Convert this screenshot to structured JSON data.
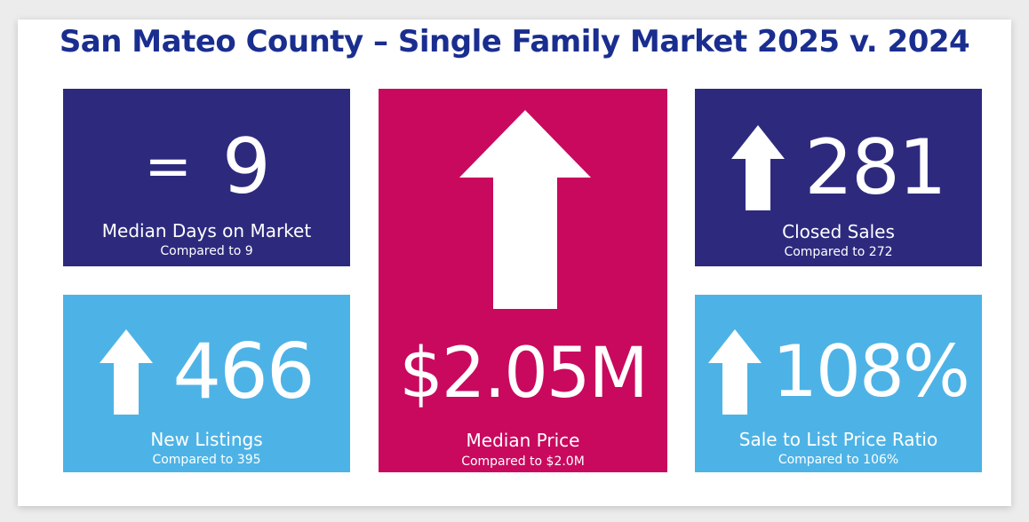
{
  "title": "San Mateo County – Single Family Market 2025 v. 2024",
  "colors": {
    "title": "#1a2e8f",
    "navy": "#2d2a7e",
    "sky": "#4db3e6",
    "magenta": "#c8095e",
    "text": "#ffffff"
  },
  "tiles": {
    "days_on_market": {
      "indicator": "=",
      "value": "9",
      "label": "Median Days on Market",
      "comparison": "Compared to 9"
    },
    "closed_sales": {
      "indicator_icon": "arrow-up-icon",
      "value": "281",
      "label": "Closed Sales",
      "comparison": "Compared to 272"
    },
    "new_listings": {
      "indicator_icon": "arrow-up-icon",
      "value": "466",
      "label": "New Listings",
      "comparison": "Compared to 395"
    },
    "median_price": {
      "indicator_icon": "arrow-up-icon",
      "value": "$2.05M",
      "label": "Median Price",
      "comparison": "Compared to $2.0M"
    },
    "sale_to_list": {
      "indicator_icon": "arrow-up-icon",
      "value": "108%",
      "label": "Sale to List Price Ratio",
      "comparison": "Compared to 106%"
    }
  }
}
